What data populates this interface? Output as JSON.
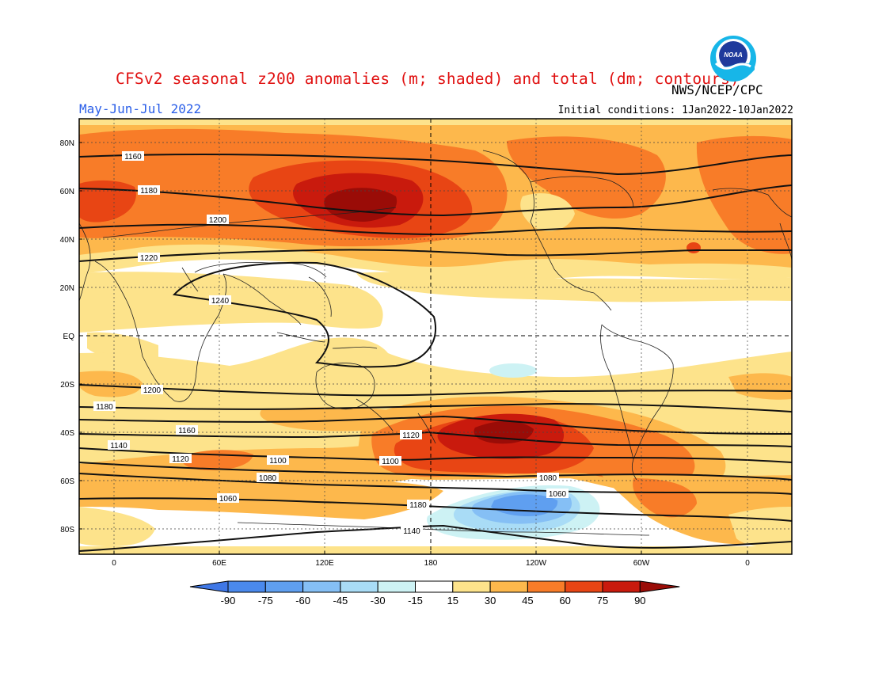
{
  "header": {
    "title": "CFSv2 seasonal z200 anomalies (m; shaded) and total (dm; contours)",
    "season": "May-Jun-Jul 2022",
    "initial_conditions": "Initial conditions: 1Jan2022-10Jan2022",
    "agency": "NWS/NCEP/CPC",
    "logo_text": "NOAA"
  },
  "map": {
    "lat_labels": [
      "80N",
      "60N",
      "40N",
      "20N",
      "EQ",
      "20S",
      "40S",
      "60S",
      "80S"
    ],
    "lon_labels": [
      "0",
      "60E",
      "120E",
      "180",
      "120W",
      "60W",
      "0"
    ],
    "contour_labels": [
      "1160",
      "1180",
      "1200",
      "1220",
      "1240",
      "1200",
      "1180",
      "1160",
      "1140",
      "1120",
      "1100",
      "1080",
      "1060",
      "1180",
      "1140",
      "1120",
      "1100",
      "1080",
      "1060"
    ]
  },
  "colorbar": {
    "ticks": [
      "-90",
      "-75",
      "-60",
      "-45",
      "-30",
      "-15",
      "15",
      "30",
      "45",
      "60",
      "75",
      "90"
    ],
    "colors": [
      "#3f77e6",
      "#4a89ec",
      "#5f9ff0",
      "#85bff5",
      "#a9dcf6",
      "#cdf2f4",
      "#ffffff",
      "#fde38b",
      "#fdb84c",
      "#f87c28",
      "#e84514",
      "#c91a0d",
      "#9a0c07"
    ]
  }
}
